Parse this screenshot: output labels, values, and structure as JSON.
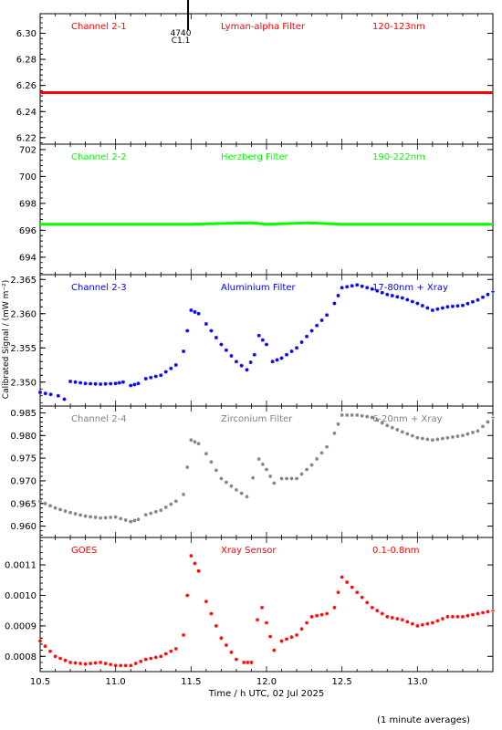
{
  "figure": {
    "xlabel": "Time / h UTC, 02 Jul 2025",
    "ylabel": "Calibrated Signal / (mW m⁻²)",
    "footnote": "(1 minute averages)",
    "x_ticks": [
      "10.5",
      "11.0",
      "11.5",
      "12.0",
      "12.5",
      "13.0"
    ],
    "marker": {
      "label_top": "4740",
      "label_bottom": "C1.1",
      "x": 11.48
    }
  },
  "chart_data": [
    {
      "type": "line",
      "title": "Channel 2-1",
      "filter": "Lyman-alpha Filter",
      "band": "120-123nm",
      "color": "#ff0000",
      "ylim": [
        6.215,
        6.315
      ],
      "yticks": [
        "6.22",
        "6.24",
        "6.26",
        "6.28",
        "6.30"
      ],
      "series": [
        {
          "values": [
            [
              10.5,
              6.2545
            ],
            [
              11.0,
              6.2545
            ],
            [
              11.5,
              6.2545
            ],
            [
              12.0,
              6.2545
            ],
            [
              12.5,
              6.2545
            ],
            [
              13.0,
              6.2545
            ],
            [
              13.5,
              6.2545
            ]
          ]
        }
      ]
    },
    {
      "type": "line",
      "title": "Channel 2-2",
      "filter": "Herzberg Filter",
      "band": "190-222nm",
      "color": "#00ff00",
      "ylim": [
        692.7,
        702.4
      ],
      "yticks": [
        "694",
        "696",
        "698",
        "700",
        "702"
      ],
      "series": [
        {
          "values": [
            [
              10.5,
              696.45
            ],
            [
              11.0,
              696.45
            ],
            [
              11.5,
              696.45
            ],
            [
              11.9,
              696.55
            ],
            [
              12.0,
              696.45
            ],
            [
              12.28,
              696.55
            ],
            [
              12.5,
              696.45
            ],
            [
              13.0,
              696.45
            ],
            [
              13.5,
              696.45
            ]
          ]
        }
      ]
    },
    {
      "type": "scatter",
      "title": "Channel 2-3",
      "filter": "Aluminium Filter",
      "band": "17-80nm + Xray",
      "color": "#0000ff",
      "ylim": [
        2.3465,
        2.3657
      ],
      "yticks": [
        "2.350",
        "2.355",
        "2.360",
        "2.365"
      ],
      "series": [
        {
          "values": [
            [
              10.5,
              2.3485
            ],
            [
              10.57,
              2.3482
            ],
            [
              10.62,
              2.348
            ],
            [
              10.66,
              2.3475
            ],
            [
              10.7,
              2.3501
            ],
            [
              10.8,
              2.3498
            ],
            [
              10.9,
              2.3497
            ],
            [
              11.0,
              2.3498
            ],
            [
              11.05,
              2.35
            ],
            [
              11.1,
              2.3495
            ],
            [
              11.15,
              2.3498
            ],
            [
              11.2,
              2.3505
            ],
            [
              11.3,
              2.351
            ],
            [
              11.4,
              2.3525
            ],
            [
              11.45,
              2.3545
            ],
            [
              11.5,
              2.3605
            ],
            [
              11.55,
              2.36
            ],
            [
              11.6,
              2.3585
            ],
            [
              11.7,
              2.3555
            ],
            [
              11.8,
              2.353
            ],
            [
              11.87,
              2.3518
            ],
            [
              11.92,
              2.354
            ],
            [
              11.95,
              2.3568
            ],
            [
              12.0,
              2.3555
            ],
            [
              12.04,
              2.353
            ],
            [
              12.1,
              2.3535
            ],
            [
              12.2,
              2.355
            ],
            [
              12.3,
              2.3575
            ],
            [
              12.4,
              2.3598
            ],
            [
              12.45,
              2.3615
            ],
            [
              12.5,
              2.3638
            ],
            [
              12.6,
              2.3642
            ],
            [
              12.7,
              2.3636
            ],
            [
              12.8,
              2.3628
            ],
            [
              12.9,
              2.3623
            ],
            [
              13.0,
              2.3615
            ],
            [
              13.1,
              2.3605
            ],
            [
              13.2,
              2.361
            ],
            [
              13.3,
              2.3612
            ],
            [
              13.4,
              2.362
            ],
            [
              13.5,
              2.3632
            ]
          ]
        }
      ]
    },
    {
      "type": "scatter",
      "title": "Channel 2-4",
      "filter": "Zirconium Filter",
      "band": "6-20nm + Xray",
      "color": "#808080",
      "ylim": [
        0.9575,
        0.9865
      ],
      "yticks": [
        "0.960",
        "0.965",
        "0.970",
        "0.975",
        "0.980",
        "0.985"
      ],
      "series": [
        {
          "values": [
            [
              10.5,
              0.9655
            ],
            [
              10.6,
              0.964
            ],
            [
              10.7,
              0.963
            ],
            [
              10.8,
              0.9622
            ],
            [
              10.9,
              0.9618
            ],
            [
              11.0,
              0.962
            ],
            [
              11.1,
              0.961
            ],
            [
              11.15,
              0.9615
            ],
            [
              11.2,
              0.9625
            ],
            [
              11.3,
              0.9635
            ],
            [
              11.4,
              0.9655
            ],
            [
              11.45,
              0.967
            ],
            [
              11.5,
              0.979
            ],
            [
              11.55,
              0.9782
            ],
            [
              11.6,
              0.976
            ],
            [
              11.7,
              0.9705
            ],
            [
              11.8,
              0.968
            ],
            [
              11.87,
              0.9665
            ],
            [
              11.95,
              0.9748
            ],
            [
              12.0,
              0.9725
            ],
            [
              12.05,
              0.9695
            ],
            [
              12.1,
              0.9705
            ],
            [
              12.2,
              0.9705
            ],
            [
              12.3,
              0.9735
            ],
            [
              12.4,
              0.9775
            ],
            [
              12.45,
              0.9805
            ],
            [
              12.5,
              0.9845
            ],
            [
              12.6,
              0.9845
            ],
            [
              12.7,
              0.984
            ],
            [
              12.8,
              0.9822
            ],
            [
              12.9,
              0.9808
            ],
            [
              13.0,
              0.9795
            ],
            [
              13.1,
              0.979
            ],
            [
              13.2,
              0.9795
            ],
            [
              13.3,
              0.98
            ],
            [
              13.4,
              0.981
            ],
            [
              13.5,
              0.984
            ]
          ]
        }
      ]
    },
    {
      "type": "scatter",
      "title": "GOES",
      "filter": "Xray Sensor",
      "band": "0.1-0.8nm",
      "color": "#ff0000",
      "ylim": [
        0.00075,
        0.00119
      ],
      "yticks": [
        "0.0008",
        "0.0009",
        "0.0010",
        "0.0011"
      ],
      "series": [
        {
          "values": [
            [
              10.5,
              0.00085
            ],
            [
              10.6,
              0.0008
            ],
            [
              10.7,
              0.00078
            ],
            [
              10.8,
              0.000775
            ],
            [
              10.9,
              0.00078
            ],
            [
              11.0,
              0.00077
            ],
            [
              11.1,
              0.00077
            ],
            [
              11.2,
              0.00079
            ],
            [
              11.3,
              0.0008
            ],
            [
              11.4,
              0.000825
            ],
            [
              11.45,
              0.00087
            ],
            [
              11.5,
              0.00113
            ],
            [
              11.55,
              0.00108
            ],
            [
              11.6,
              0.00098
            ],
            [
              11.7,
              0.00086
            ],
            [
              11.8,
              0.00079
            ],
            [
              11.85,
              0.00078
            ],
            [
              11.9,
              0.00078
            ],
            [
              11.94,
              0.00092
            ],
            [
              11.97,
              0.00096
            ],
            [
              12.0,
              0.00091
            ],
            [
              12.05,
              0.00082
            ],
            [
              12.1,
              0.00085
            ],
            [
              12.2,
              0.00087
            ],
            [
              12.3,
              0.00093
            ],
            [
              12.4,
              0.00094
            ],
            [
              12.45,
              0.00096
            ],
            [
              12.5,
              0.00106
            ],
            [
              12.6,
              0.00101
            ],
            [
              12.7,
              0.00096
            ],
            [
              12.8,
              0.00093
            ],
            [
              12.9,
              0.00092
            ],
            [
              13.0,
              0.0009
            ],
            [
              13.1,
              0.00091
            ],
            [
              13.2,
              0.00093
            ],
            [
              13.3,
              0.00093
            ],
            [
              13.4,
              0.00094
            ],
            [
              13.5,
              0.00095
            ]
          ]
        }
      ]
    }
  ]
}
